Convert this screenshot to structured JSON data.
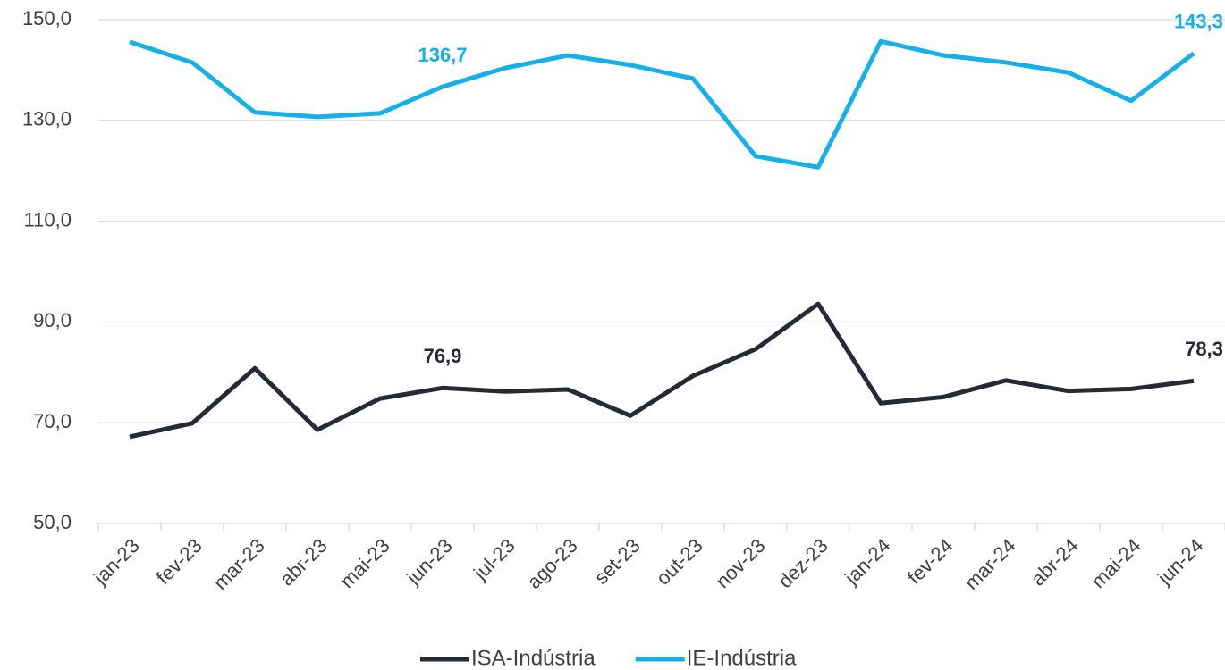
{
  "chart_data": {
    "type": "line",
    "categories": [
      "jan-23",
      "fev-23",
      "mar-23",
      "abr-23",
      "mai-23",
      "jun-23",
      "jul-23",
      "ago-23",
      "set-23",
      "out-23",
      "nov-23",
      "dez-23",
      "jan-24",
      "fev-24",
      "mar-24",
      "abr-24",
      "mai-24",
      "jun-24"
    ],
    "series": [
      {
        "name": "ISA-Indústria",
        "color": "#252a36",
        "values": [
          67.2,
          69.9,
          80.8,
          68.6,
          74.8,
          76.9,
          76.2,
          76.6,
          71.4,
          79.3,
          84.6,
          93.6,
          73.9,
          75.1,
          78.4,
          76.3,
          76.7,
          78.3
        ],
        "value_labels": [
          null,
          null,
          null,
          null,
          null,
          "76,9",
          null,
          null,
          null,
          null,
          null,
          null,
          null,
          null,
          null,
          null,
          null,
          "78,3"
        ]
      },
      {
        "name": "IE-Indústria",
        "color": "#16b0e8",
        "values": [
          145.6,
          141.5,
          131.6,
          130.7,
          131.4,
          136.7,
          140.4,
          142.9,
          141.0,
          138.3,
          122.9,
          120.7,
          145.7,
          142.9,
          141.5,
          139.5,
          133.9,
          143.3
        ],
        "value_labels": [
          null,
          null,
          null,
          null,
          null,
          "136,7",
          null,
          null,
          null,
          null,
          null,
          null,
          null,
          null,
          null,
          null,
          null,
          "143,3"
        ]
      }
    ],
    "ylim": [
      50,
      150
    ],
    "yticks": [
      {
        "value": 50,
        "label": "50,0"
      },
      {
        "value": 70,
        "label": "70,0"
      },
      {
        "value": 90,
        "label": "90,0"
      },
      {
        "value": 110,
        "label": "110,0"
      },
      {
        "value": 130,
        "label": "130,0"
      },
      {
        "value": 150,
        "label": "150,0"
      }
    ],
    "grid": true,
    "legend": "bottom"
  }
}
